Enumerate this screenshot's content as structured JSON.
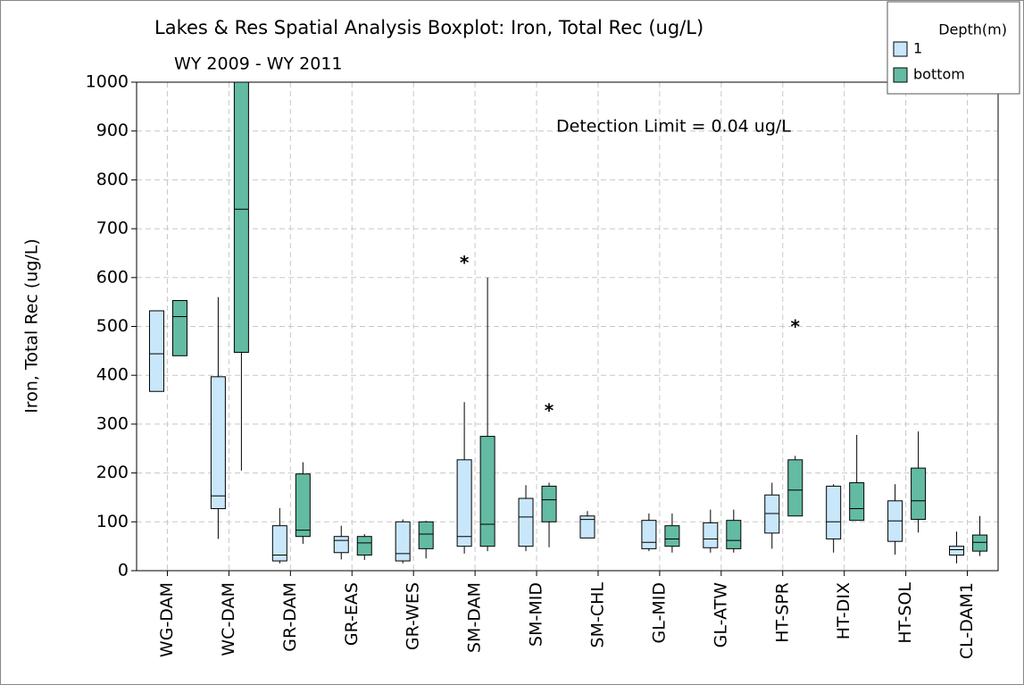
{
  "chart_data": {
    "type": "boxplot",
    "title": "Lakes & Res Spatial Analysis Boxplot: Iron, Total Rec (ug/L)",
    "subtitle": "WY 2009 - WY 2011",
    "y_label": "Iron, Total Rec (ug/L)",
    "annotation": "Detection Limit = 0.04 ug/L",
    "legend_title": "Depth(m)",
    "categories": [
      "WG-DAM",
      "WC-DAM",
      "GR-DAM",
      "GR-EAS",
      "GR-WES",
      "SM-DAM",
      "SM-MID",
      "SM-CHL",
      "GL-MID",
      "GL-ATW",
      "HT-SPR",
      "HT-DIX",
      "HT-SOL",
      "CL-DAM1"
    ],
    "series": [
      {
        "name": "1",
        "color": "#c9e7fb",
        "min": [
          367,
          65,
          15,
          23,
          15,
          35,
          40,
          67,
          40,
          37,
          45,
          37,
          33,
          15
        ],
        "q1": [
          367,
          127,
          20,
          37,
          20,
          50,
          50,
          67,
          45,
          47,
          77,
          65,
          60,
          32
        ],
        "median": [
          444,
          153,
          32,
          62,
          35,
          70,
          110,
          105,
          58,
          65,
          117,
          100,
          102,
          43
        ],
        "q3": [
          532,
          397,
          92,
          70,
          100,
          227,
          148,
          112,
          103,
          98,
          155,
          173,
          143,
          50
        ],
        "max": [
          532,
          560,
          128,
          92,
          105,
          345,
          175,
          122,
          117,
          125,
          180,
          177,
          177,
          80
        ],
        "outliers": [
          [],
          [],
          [],
          [],
          [],
          [
            635
          ],
          [],
          [],
          [],
          [],
          [],
          [],
          [],
          []
        ]
      },
      {
        "name": "bottom",
        "color": "#63bba3",
        "min": [
          440,
          205,
          55,
          22,
          25,
          40,
          48,
          null,
          37,
          37,
          112,
          103,
          78,
          30
        ],
        "q1": [
          440,
          447,
          70,
          32,
          45,
          50,
          100,
          null,
          50,
          45,
          112,
          103,
          105,
          40
        ],
        "median": [
          520,
          740,
          83,
          57,
          75,
          95,
          145,
          null,
          65,
          62,
          165,
          127,
          143,
          58
        ],
        "q3": [
          553,
          1000,
          198,
          70,
          100,
          275,
          173,
          null,
          92,
          103,
          227,
          180,
          210,
          73
        ],
        "max": [
          553,
          1000,
          222,
          75,
          102,
          600,
          180,
          null,
          117,
          125,
          235,
          278,
          285,
          112
        ],
        "outliers": [
          [],
          [],
          [],
          [],
          [],
          [],
          [
            333
          ],
          [],
          [],
          [],
          [
            505
          ],
          [],
          [],
          []
        ]
      }
    ],
    "ylim": [
      0,
      1000
    ],
    "yticks": [
      0,
      100,
      200,
      300,
      400,
      500,
      600,
      700,
      800,
      900,
      1000
    ],
    "grid": true
  }
}
